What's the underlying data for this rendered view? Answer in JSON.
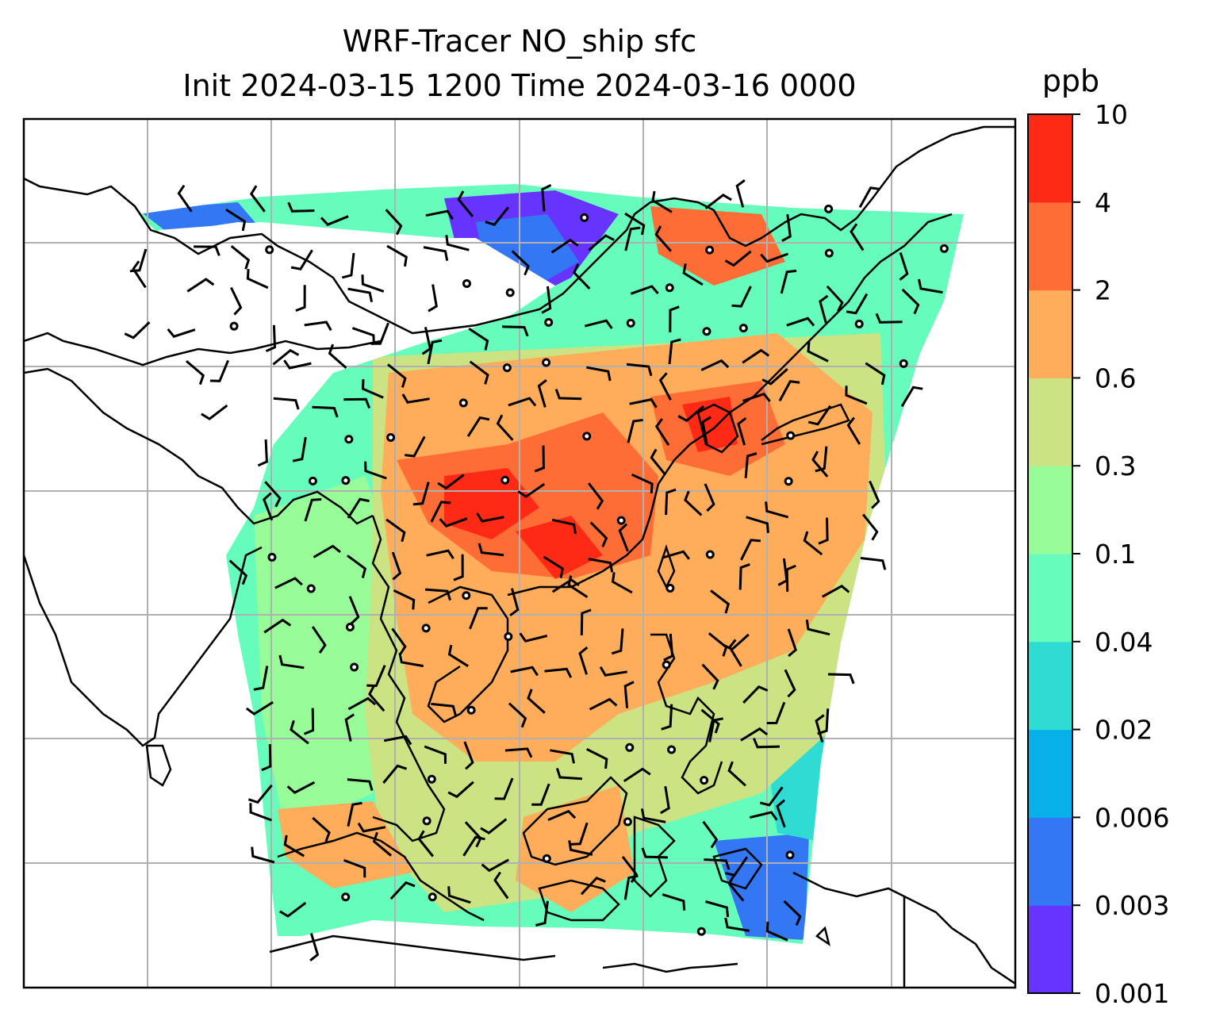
{
  "title": {
    "line1": "WRF-Tracer NO_ship sfc",
    "line2": "Init 2024-03-15 1200 Time 2024-03-16 0000"
  },
  "colorbar": {
    "units": "ppb",
    "ticks": [
      "0.001",
      "0.003",
      "0.006",
      "0.02",
      "0.04",
      "0.1",
      "0.3",
      "0.6",
      "2",
      "4",
      "10"
    ],
    "colors": [
      "#6633ff",
      "#3477f5",
      "#08b0ea",
      "#2fdcd4",
      "#66fcbb",
      "#98fc99",
      "#cbe382",
      "#ffad5a",
      "#ff6d36",
      "#ff2a16"
    ]
  },
  "map": {
    "field": "NO_ship surface concentration",
    "background": "#ffffff",
    "gridline_color": "#b0b0b0",
    "coastline_color": "#000000"
  }
}
